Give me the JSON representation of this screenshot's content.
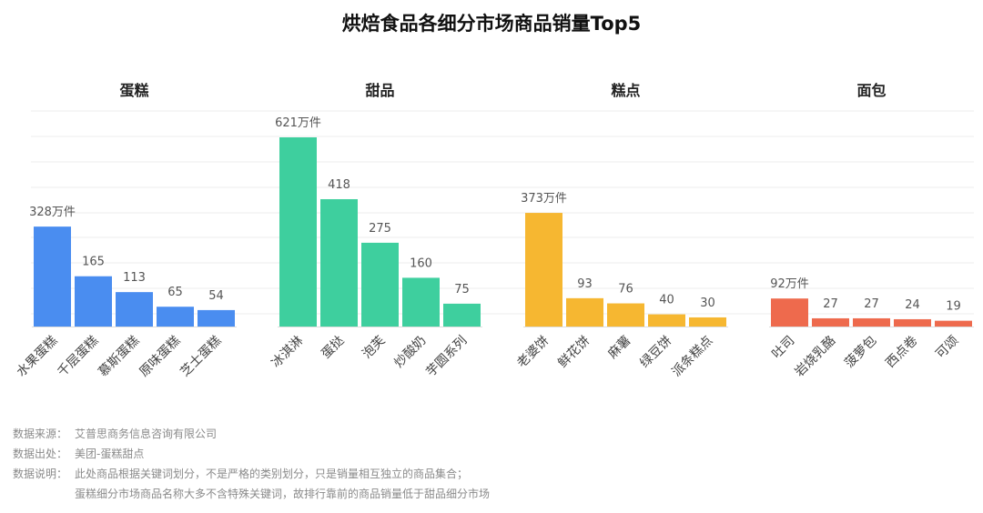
{
  "title": "烘焙食品各细分市场商品销量Top5",
  "chart_data": {
    "type": "bar",
    "unit": "万件",
    "groups": [
      {
        "name": "蛋糕",
        "color": "#4a8df0",
        "categories": [
          "水果蛋糕",
          "千层蛋糕",
          "慕斯蛋糕",
          "原味蛋糕",
          "芝士蛋糕"
        ],
        "values": [
          328,
          165,
          113,
          65,
          54
        ],
        "value_labels": [
          "328万件",
          "165",
          "113",
          "65",
          "54"
        ]
      },
      {
        "name": "甜品",
        "color": "#3ecf9e",
        "categories": [
          "冰淇淋",
          "蛋挞",
          "泡芙",
          "炒酸奶",
          "芋圆系列"
        ],
        "values": [
          621,
          418,
          275,
          160,
          75
        ],
        "value_labels": [
          "621万件",
          "418",
          "275",
          "160",
          "75"
        ]
      },
      {
        "name": "糕点",
        "color": "#f6b731",
        "categories": [
          "老婆饼",
          "鲜花饼",
          "麻薯",
          "绿豆饼",
          "派条糕点"
        ],
        "values": [
          373,
          93,
          76,
          40,
          30
        ],
        "value_labels": [
          "373万件",
          "93",
          "76",
          "40",
          "30"
        ]
      },
      {
        "name": "面包",
        "color": "#ee6a4d",
        "categories": [
          "吐司",
          "岩烧乳酪",
          "菠萝包",
          "西点卷",
          "可颂"
        ],
        "values": [
          92,
          27,
          27,
          24,
          19
        ],
        "value_labels": [
          "92万件",
          "27",
          "27",
          "24",
          "19"
        ]
      }
    ],
    "ylim": [
      0,
      700
    ],
    "grid": true
  },
  "notes": {
    "source_label": "数据来源：",
    "source_text": "艾普思商务信息咨询有限公司",
    "origin_label": "数据出处：",
    "origin_text": "美团-蛋糕甜点",
    "desc_label": "数据说明：",
    "desc_line1": "此处商品根据关键词划分，不是严格的类别划分，只是销量相互独立的商品集合；",
    "desc_line2": "蛋糕细分市场商品名称大多不含特殊关键词，故排行靠前的商品销量低于甜品细分市场"
  }
}
